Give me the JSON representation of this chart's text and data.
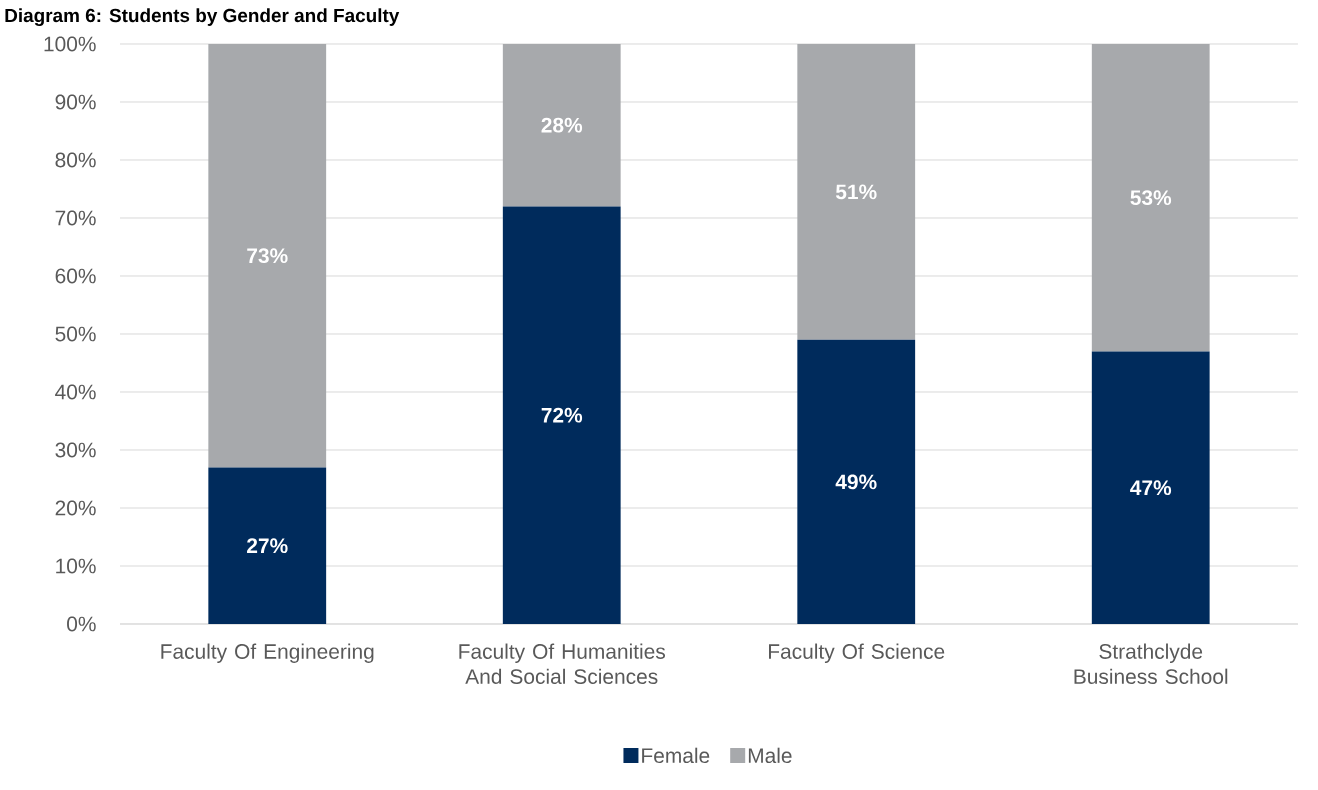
{
  "chart_data": {
    "type": "bar",
    "title": "Diagram 6: Students by Gender and Faculty",
    "categories": [
      "Faculty Of Engineering",
      "Faculty Of Humanities And Social Sciences",
      "Faculty Of Science",
      "Strathclyde Business School"
    ],
    "stacked": true,
    "series": [
      {
        "name": "Female",
        "color": "#002b5c",
        "values": [
          27,
          72,
          49,
          47
        ],
        "value_labels": [
          "27%",
          "72%",
          "49%",
          "47%"
        ]
      },
      {
        "name": "Male",
        "color": "#a7a9ac",
        "values": [
          73,
          28,
          51,
          53
        ],
        "value_labels": [
          "73%",
          "28%",
          "51%",
          "53%"
        ]
      }
    ],
    "ylim": [
      0,
      100
    ],
    "yticks": [
      {
        "value": 0,
        "label": "0%"
      },
      {
        "value": 10,
        "label": "10%"
      },
      {
        "value": 20,
        "label": "20%"
      },
      {
        "value": 30,
        "label": "30%"
      },
      {
        "value": 40,
        "label": "40%"
      },
      {
        "value": 50,
        "label": "50%"
      },
      {
        "value": 60,
        "label": "60%"
      },
      {
        "value": 70,
        "label": "70%"
      },
      {
        "value": 80,
        "label": "80%"
      },
      {
        "value": 90,
        "label": "90%"
      },
      {
        "value": 100,
        "label": "100%"
      }
    ],
    "grid": "y",
    "legend": "bottom"
  }
}
